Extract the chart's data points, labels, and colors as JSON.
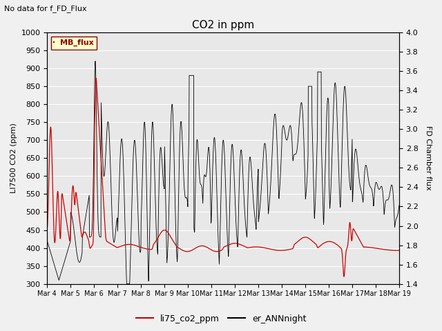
{
  "title": "CO2 in ppm",
  "top_left_text": "No data for f_FD_Flux",
  "ylabel_left": "LI7500 CO2 (ppm)",
  "ylabel_right": "FD Chamber flux",
  "ylim_left": [
    300,
    1000
  ],
  "ylim_right": [
    1.4,
    4.0
  ],
  "legend_box_label": "MB_flux",
  "legend_entries": [
    "li75_co2_ppm",
    "er_ANNnight"
  ],
  "legend_colors": [
    "#cc0000",
    "#000000"
  ],
  "bg_color": "#f0f0f0",
  "plot_bg_color": "#e8e8e8",
  "x_tick_labels": [
    "Mar 4",
    "Mar 5",
    "Mar 6",
    "Mar 7",
    "Mar 8",
    "Mar 9",
    "Mar 10",
    "Mar 11",
    "Mar 12",
    "Mar 13",
    "Mar 14",
    "Mar 15",
    "Mar 16",
    "Mar 17",
    "Mar 18",
    "Mar 19"
  ],
  "yticks_left": [
    300,
    350,
    400,
    450,
    500,
    550,
    600,
    650,
    700,
    750,
    800,
    850,
    900,
    950,
    1000
  ],
  "yticks_right": [
    1.4,
    1.6,
    1.8,
    2.0,
    2.2,
    2.4,
    2.6,
    2.8,
    3.0,
    3.2,
    3.4,
    3.6,
    3.8,
    4.0
  ]
}
